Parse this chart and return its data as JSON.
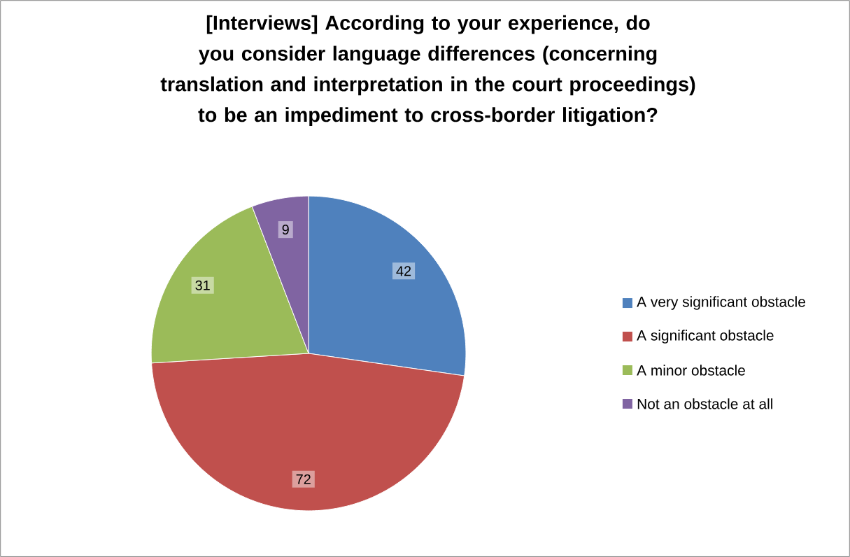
{
  "chart_data": {
    "type": "pie",
    "title": "[Interviews] According to your experience, do you consider language differences (concerning translation and interpretation in the court proceedings) to be an impediment to cross-border litigation?",
    "categories": [
      "A very significant obstacle",
      "A significant obstacle",
      "A minor obstacle",
      "Not an obstacle at all"
    ],
    "values": [
      42,
      72,
      31,
      9
    ],
    "colors": [
      "#4f81bd",
      "#c0504d",
      "#9bbb59",
      "#8064a2"
    ],
    "data_labels": true,
    "legend": "right"
  }
}
